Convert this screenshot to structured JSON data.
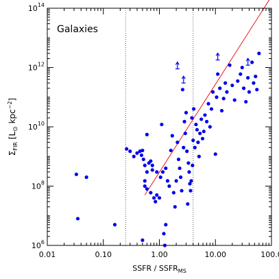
{
  "chart_data": {
    "type": "scatter",
    "x_scale": "log",
    "y_scale": "log",
    "xlim": [
      0.01,
      100
    ],
    "ylim": [
      1000000,
      100000000000000
    ],
    "x_ticks": [
      {
        "value": 0.01,
        "label": "0.01"
      },
      {
        "value": 0.1,
        "label": "0.10"
      },
      {
        "value": 1,
        "label": "1.00"
      },
      {
        "value": 10,
        "label": "10.00"
      },
      {
        "value": 100,
        "label": "100.0"
      }
    ],
    "y_ticks": [
      {
        "value": 1000000,
        "base": "10",
        "exp": "6"
      },
      {
        "value": 100000000,
        "base": "10",
        "exp": "8"
      },
      {
        "value": 10000000000,
        "base": "10",
        "exp": "10"
      },
      {
        "value": 1000000000000,
        "base": "10",
        "exp": "12"
      },
      {
        "value": 100000000000000,
        "base": "10",
        "exp": "14"
      }
    ],
    "xlabel": {
      "main": "SSFR / SSFR",
      "sub": "MS"
    },
    "ylabel": {
      "sigma": "Σ",
      "sub": "FIR",
      "bracket_open": "[L",
      "sun": "⊙",
      "unit": " kpc",
      "exp": "−2",
      "bracket_close": "]"
    },
    "annotation": "Galaxies",
    "vlines": [
      0.25,
      4.0
    ],
    "fit_line": {
      "x": [
        0.55,
        100
      ],
      "y": [
        50000000,
        250000000000000
      ]
    },
    "point_color": "#0000ee",
    "line_color": "#ee1111",
    "grid": false,
    "points": [
      [
        0.033,
        250000000
      ],
      [
        0.035,
        8000000
      ],
      [
        0.05,
        200000000
      ],
      [
        0.16,
        5000000
      ],
      [
        0.26,
        1800000000
      ],
      [
        0.3,
        1500000000
      ],
      [
        0.35,
        1000000000
      ],
      [
        0.4,
        1300000000
      ],
      [
        0.45,
        1500000000
      ],
      [
        0.48,
        1100000000
      ],
      [
        0.5,
        1600000000
      ],
      [
        0.52,
        800000000
      ],
      [
        0.55,
        500000000
      ],
      [
        0.6,
        5500000000
      ],
      [
        0.6,
        300000000
      ],
      [
        0.65,
        600000000
      ],
      [
        0.7,
        700000000
      ],
      [
        0.75,
        500000000
      ],
      [
        0.5,
        1500000
      ],
      [
        0.55,
        150000000
      ],
      [
        0.55,
        100000000
      ],
      [
        0.6,
        80000000
      ],
      [
        0.7,
        60000000
      ],
      [
        0.75,
        350000000
      ],
      [
        0.8,
        40000000
      ],
      [
        0.85,
        30000000
      ],
      [
        0.9,
        50000000
      ],
      [
        0.9,
        300000000
      ],
      [
        1.0,
        40000000
      ],
      [
        1.05,
        200000000
      ],
      [
        1.1,
        12000000000
      ],
      [
        1.15,
        300000000
      ],
      [
        1.2,
        2500000
      ],
      [
        1.25,
        1000000
      ],
      [
        1.3,
        5000000
      ],
      [
        1.3,
        400000000
      ],
      [
        1.4,
        150000000
      ],
      [
        1.5,
        100000000
      ],
      [
        1.6,
        1600000000
      ],
      [
        1.7,
        5000000000
      ],
      [
        1.8,
        60000000
      ],
      [
        1.9,
        20000000
      ],
      [
        2.0,
        150000000
      ],
      [
        2.1,
        3000000000
      ],
      [
        2.2,
        800000000
      ],
      [
        2.3,
        400000000
      ],
      [
        2.4,
        200000000
      ],
      [
        2.5,
        70000000
      ],
      [
        2.6,
        180000000000
      ],
      [
        2.7,
        2000000000
      ],
      [
        2.8,
        15000000000
      ],
      [
        2.9,
        6000000000
      ],
      [
        3.0,
        30000000000
      ],
      [
        3.1,
        1500000000
      ],
      [
        3.2,
        25000000
      ],
      [
        3.3,
        600000000
      ],
      [
        3.4,
        300000000
      ],
      [
        3.5,
        120000000
      ],
      [
        3.6,
        70000000
      ],
      [
        3.7,
        150000000
      ],
      [
        3.8,
        20000000000
      ],
      [
        3.9,
        500000000
      ],
      [
        4.0,
        3500000000
      ],
      [
        4.1,
        40000000000
      ],
      [
        4.3,
        2000000000
      ],
      [
        4.5,
        12000000000
      ],
      [
        4.7,
        8000000000
      ],
      [
        4.9,
        3000000000
      ],
      [
        5.1,
        1000000000
      ],
      [
        5.3,
        6000000000
      ],
      [
        5.6,
        18000000000
      ],
      [
        5.9,
        4000000000
      ],
      [
        6.2,
        7000000000
      ],
      [
        6.5,
        25000000000
      ],
      [
        7.0,
        15000000000
      ],
      [
        7.5,
        60000000000
      ],
      [
        8.0,
        10000000000
      ],
      [
        8.5,
        40000000000
      ],
      [
        9.0,
        150000000000
      ],
      [
        10.0,
        1200000000
      ],
      [
        10.5,
        100000000000
      ],
      [
        11.0,
        600000000000
      ],
      [
        12.0,
        200000000000
      ],
      [
        13.0,
        35000000000
      ],
      [
        14.0,
        90000000000
      ],
      [
        15.0,
        300000000000
      ],
      [
        16.0,
        150000000000
      ],
      [
        18.0,
        1200000000000
      ],
      [
        20.0,
        250000000000
      ],
      [
        22.0,
        80000000000
      ],
      [
        25.0,
        350000000000
      ],
      [
        28.0,
        600000000000
      ],
      [
        30.0,
        1000000000000
      ],
      [
        32.0,
        200000000000
      ],
      [
        35.0,
        70000000000
      ],
      [
        38.0,
        450000000000
      ],
      [
        40.0,
        150000000000
      ],
      [
        45.0,
        1500000000000
      ],
      [
        48.0,
        300000000000
      ],
      [
        52.0,
        500000000000
      ],
      [
        55.0,
        180000000000
      ],
      [
        60.0,
        3000000000000
      ]
    ],
    "lower_limits": [
      [
        2.1,
        900000000000
      ],
      [
        2.7,
        300000000000
      ],
      [
        11.0,
        1800000000000
      ],
      [
        38.0,
        1200000000000
      ]
    ]
  }
}
